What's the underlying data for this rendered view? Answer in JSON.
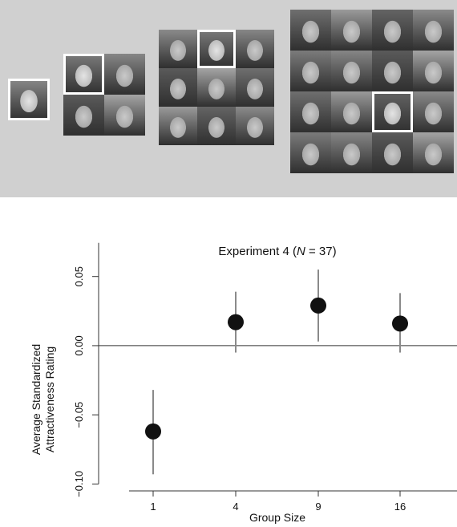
{
  "stimuli": {
    "groups": [
      {
        "size": 1,
        "target_index": 0
      },
      {
        "size": 4,
        "target_index": 0
      },
      {
        "size": 9,
        "target_index": 1
      },
      {
        "size": 16,
        "target_index": 10
      }
    ]
  },
  "chart_data": {
    "type": "scatter",
    "title_prefix": "Experiment 4 (",
    "title_italic": "N",
    "title_suffix": " = 37)",
    "xlabel": "Group Size",
    "ylabel_lines": [
      "Average Standardized",
      "Attractiveness Rating"
    ],
    "categories": [
      "1",
      "4",
      "9",
      "16"
    ],
    "series": [
      {
        "values": [
          -0.062,
          0.017,
          0.029,
          0.016
        ],
        "ci_low": [
          -0.093,
          -0.005,
          0.003,
          -0.005
        ],
        "ci_high": [
          -0.032,
          0.039,
          0.055,
          0.038
        ]
      }
    ],
    "ylim": [
      -0.105,
      0.062
    ],
    "yticks": [
      0.05,
      0.0,
      -0.05,
      -0.1
    ],
    "ytick_labels": [
      "0.05",
      "0.00",
      "−0.05",
      "−0.10"
    ],
    "reference_line": 0,
    "grid": false,
    "colors": {
      "point": "#111111",
      "errorbar": "#8a8a8a",
      "axis": "#333333"
    }
  }
}
